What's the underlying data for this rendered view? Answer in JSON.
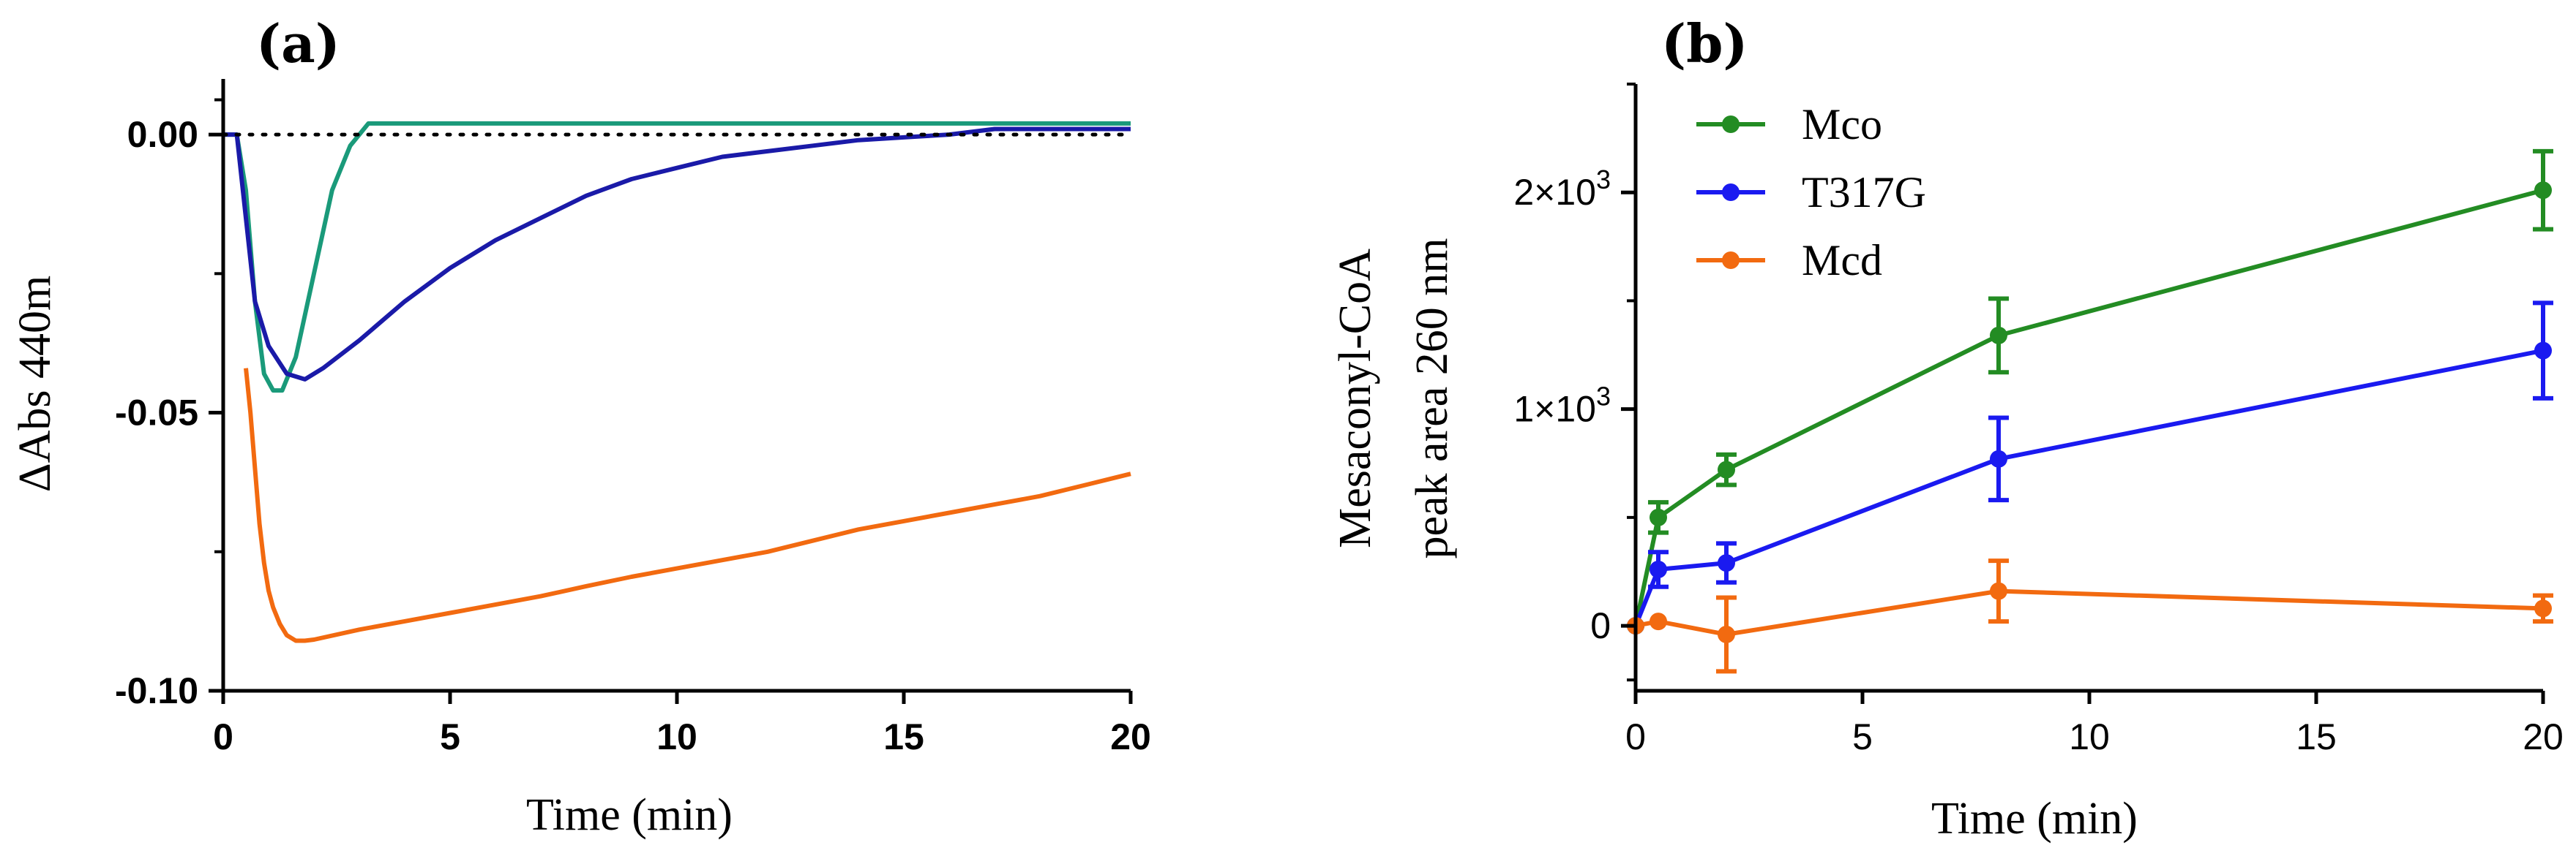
{
  "chart_data": [
    {
      "panel": "(a)",
      "type": "line",
      "title": "",
      "xlabel": "Time (min)",
      "ylabel": "ΔAbs 440m",
      "xlim": [
        0,
        20
      ],
      "ylim": [
        -0.1,
        0.01
      ],
      "xticks": [
        0,
        5,
        10,
        15,
        20
      ],
      "xtick_labels": [
        "0",
        "5",
        "10",
        "15",
        "20"
      ],
      "yticks": [
        0.0,
        -0.05,
        -0.1
      ],
      "ytick_labels": [
        "0.00",
        "-0.05",
        "-0.10"
      ],
      "reference_line": {
        "y": 0.0,
        "style": "dotted",
        "color": "#000000"
      },
      "series": [
        {
          "name": "teal",
          "color": "#1a9a7a",
          "x": [
            0,
            0.3,
            0.5,
            0.7,
            0.9,
            1.1,
            1.3,
            1.6,
            2.0,
            2.4,
            2.8,
            3.2,
            4,
            6,
            8,
            10,
            12,
            14,
            16,
            18,
            20
          ],
          "y": [
            0,
            0,
            -0.01,
            -0.03,
            -0.043,
            -0.046,
            -0.046,
            -0.04,
            -0.025,
            -0.01,
            -0.002,
            0.002,
            0.002,
            0.002,
            0.002,
            0.002,
            0.002,
            0.002,
            0.002,
            0.002,
            0.002
          ]
        },
        {
          "name": "navy",
          "color": "#1a1aa8",
          "x": [
            0,
            0.3,
            0.5,
            0.7,
            1.0,
            1.4,
            1.8,
            2.2,
            3,
            4,
            5,
            6,
            7,
            8,
            9,
            10,
            11,
            12,
            13,
            14,
            15,
            16,
            17,
            18,
            19,
            20
          ],
          "y": [
            0,
            0,
            -0.015,
            -0.03,
            -0.038,
            -0.043,
            -0.044,
            -0.042,
            -0.037,
            -0.03,
            -0.024,
            -0.019,
            -0.015,
            -0.011,
            -0.008,
            -0.006,
            -0.004,
            -0.003,
            -0.002,
            -0.001,
            -0.0005,
            0.0,
            0.001,
            0.001,
            0.001,
            0.001
          ]
        },
        {
          "name": "orange",
          "color": "#f26a10",
          "x": [
            0.5,
            0.6,
            0.7,
            0.8,
            0.9,
            1.0,
            1.1,
            1.25,
            1.4,
            1.6,
            1.8,
            2,
            3,
            4,
            5,
            6,
            7,
            8,
            9,
            10,
            11,
            12,
            13,
            14,
            15,
            16,
            17,
            18,
            19,
            20
          ],
          "y": [
            -0.042,
            -0.05,
            -0.06,
            -0.07,
            -0.077,
            -0.082,
            -0.085,
            -0.088,
            -0.09,
            -0.091,
            -0.091,
            -0.0908,
            -0.089,
            -0.0875,
            -0.086,
            -0.0845,
            -0.083,
            -0.0812,
            -0.0795,
            -0.078,
            -0.0765,
            -0.075,
            -0.073,
            -0.071,
            -0.0695,
            -0.068,
            -0.0665,
            -0.065,
            -0.063,
            -0.061
          ]
        }
      ]
    },
    {
      "panel": "(b)",
      "type": "line",
      "title": "",
      "xlabel": "Time (min)",
      "ylabel": [
        "Mesaconyl-CoA",
        "peak area 260 nm"
      ],
      "xlim": [
        0,
        20
      ],
      "ylim": [
        -300,
        2500
      ],
      "xticks": [
        0,
        5,
        10,
        15,
        20
      ],
      "xtick_labels": [
        "0",
        "5",
        "10",
        "15",
        "20"
      ],
      "yticks": [
        0,
        1000,
        2000
      ],
      "ytick_labels": [
        {
          "base": "0",
          "exp": ""
        },
        {
          "base": "1×10",
          "exp": "3"
        },
        {
          "base": "2×10",
          "exp": "3"
        }
      ],
      "legend_position": "top-left",
      "series": [
        {
          "name": "Mco",
          "color": "#238c23",
          "x": [
            0,
            0.5,
            2,
            8,
            20
          ],
          "y": [
            0,
            500,
            720,
            1340,
            2010
          ],
          "err": [
            0,
            70,
            70,
            170,
            180
          ]
        },
        {
          "name": "T317G",
          "color": "#1a1af0",
          "x": [
            0,
            0.5,
            2,
            8,
            20
          ],
          "y": [
            0,
            260,
            290,
            770,
            1270
          ],
          "err": [
            0,
            80,
            90,
            190,
            220
          ]
        },
        {
          "name": "Mcd",
          "color": "#f26a10",
          "x": [
            0,
            0.5,
            2,
            8,
            20
          ],
          "y": [
            0,
            20,
            -40,
            160,
            80
          ],
          "err": [
            0,
            0,
            170,
            140,
            60
          ]
        }
      ]
    }
  ]
}
